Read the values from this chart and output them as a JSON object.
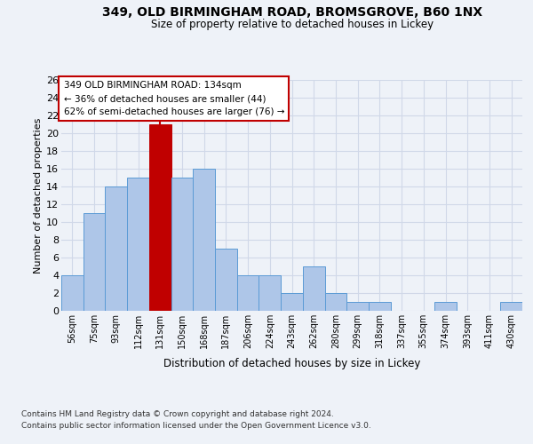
{
  "title_line1": "349, OLD BIRMINGHAM ROAD, BROMSGROVE, B60 1NX",
  "title_line2": "Size of property relative to detached houses in Lickey",
  "xlabel": "Distribution of detached houses by size in Lickey",
  "ylabel": "Number of detached properties",
  "bar_labels": [
    "56sqm",
    "75sqm",
    "93sqm",
    "112sqm",
    "131sqm",
    "150sqm",
    "168sqm",
    "187sqm",
    "206sqm",
    "224sqm",
    "243sqm",
    "262sqm",
    "280sqm",
    "299sqm",
    "318sqm",
    "337sqm",
    "355sqm",
    "374sqm",
    "393sqm",
    "411sqm",
    "430sqm"
  ],
  "bar_values": [
    4,
    11,
    14,
    15,
    21,
    15,
    16,
    7,
    4,
    4,
    2,
    5,
    2,
    1,
    1,
    0,
    0,
    1,
    0,
    0,
    1
  ],
  "bar_color": "#aec6e8",
  "bar_edgecolor": "#5b9bd5",
  "highlight_bar_index": 4,
  "highlight_bar_color": "#c00000",
  "highlight_bar_edgecolor": "#c00000",
  "vline_color": "#c00000",
  "ylim": [
    0,
    26
  ],
  "yticks": [
    0,
    2,
    4,
    6,
    8,
    10,
    12,
    14,
    16,
    18,
    20,
    22,
    24,
    26
  ],
  "grid_color": "#d0d8e8",
  "annotation_text": "349 OLD BIRMINGHAM ROAD: 134sqm\n← 36% of detached houses are smaller (44)\n62% of semi-detached houses are larger (76) →",
  "annotation_box_edgecolor": "#c00000",
  "footer_line1": "Contains HM Land Registry data © Crown copyright and database right 2024.",
  "footer_line2": "Contains public sector information licensed under the Open Government Licence v3.0.",
  "bg_color": "#eef2f8",
  "plot_bg_color": "#eef2f8"
}
